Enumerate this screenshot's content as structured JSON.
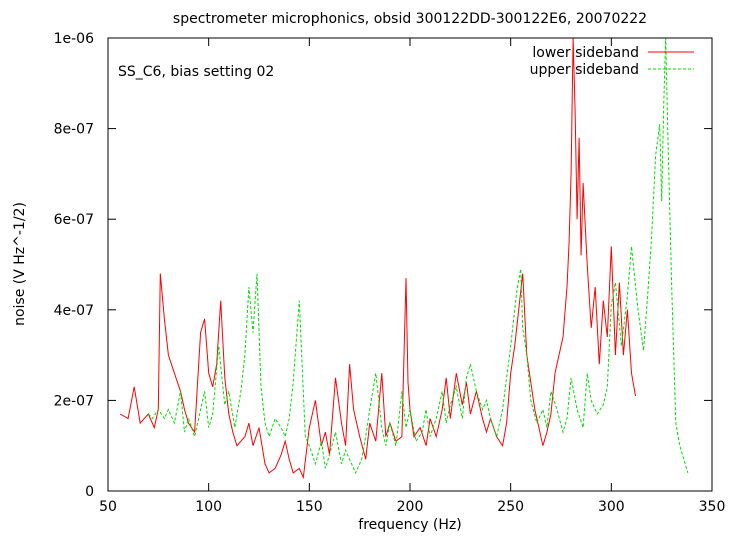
{
  "chart_data": {
    "type": "line",
    "title": "spectrometer microphonics, obsid 300122DD-300122E6, 20070222",
    "annotation": "SS_C6, bias setting 02",
    "xlabel": "frequency (Hz)",
    "ylabel": "noise (V Hz^-1/2)",
    "xlim": [
      50,
      350
    ],
    "ylim": [
      0,
      1e-06
    ],
    "x_ticks": [
      50,
      100,
      150,
      200,
      250,
      300,
      350
    ],
    "x_tick_labels": [
      "50",
      "100",
      "150",
      "200",
      "250",
      "300",
      "350"
    ],
    "y_ticks": [
      0,
      2e-07,
      4e-07,
      6e-07,
      8e-07,
      1e-06
    ],
    "y_tick_labels": [
      "0",
      "2e-07",
      "4e-07",
      "6e-07",
      "8e-07",
      "1e-06"
    ],
    "grid": false,
    "legend_position": "top-right",
    "series": [
      {
        "name": "lower sideband",
        "color": "#ff0000",
        "style": "solid",
        "x": [
          56,
          60,
          63,
          66,
          70,
          73,
          75,
          76,
          78,
          80,
          83,
          86,
          88,
          90,
          93,
          96,
          98,
          100,
          102,
          104,
          106,
          108,
          110,
          112,
          114,
          116,
          118,
          120,
          122,
          125,
          128,
          130,
          133,
          136,
          138,
          140,
          142,
          145,
          147,
          150,
          153,
          156,
          158,
          160,
          163,
          166,
          168,
          170,
          172,
          175,
          178,
          180,
          183,
          186,
          188,
          190,
          193,
          196,
          198,
          199,
          200,
          202,
          205,
          208,
          210,
          213,
          216,
          218,
          220,
          223,
          226,
          228,
          230,
          233,
          236,
          238,
          240,
          243,
          246,
          248,
          250,
          252,
          254,
          256,
          258,
          260,
          262,
          264,
          266,
          268,
          270,
          272,
          274,
          276,
          278,
          279,
          280,
          281,
          282,
          283,
          284,
          285,
          286,
          288,
          290,
          292,
          294,
          296,
          298,
          300,
          302,
          304,
          306,
          308,
          310,
          312
        ],
        "y": [
          1.7e-07,
          1.6e-07,
          2.3e-07,
          1.5e-07,
          1.7e-07,
          1.4e-07,
          1.8e-07,
          4.8e-07,
          3.8e-07,
          3e-07,
          2.6e-07,
          2.2e-07,
          1.8e-07,
          1.5e-07,
          1.3e-07,
          3.5e-07,
          3.8e-07,
          2.6e-07,
          2.3e-07,
          2.8e-07,
          4.2e-07,
          2.5e-07,
          1.7e-07,
          1.3e-07,
          1e-07,
          1.1e-07,
          1.2e-07,
          1.5e-07,
          1e-07,
          1.4e-07,
          6e-08,
          4e-08,
          5e-08,
          8e-08,
          1.1e-07,
          7e-08,
          4e-08,
          5e-08,
          3e-08,
          1.4e-07,
          2e-07,
          1e-07,
          1.3e-07,
          8e-08,
          2.5e-07,
          1.5e-07,
          1e-07,
          2.8e-07,
          1.8e-07,
          1.2e-07,
          7e-08,
          1.5e-07,
          1.1e-07,
          2.6e-07,
          1.2e-07,
          1.5e-07,
          1.1e-07,
          1.2e-07,
          4.7e-07,
          2.4e-07,
          1.8e-07,
          1.2e-07,
          1.4e-07,
          1e-07,
          1.6e-07,
          1.2e-07,
          1.8e-07,
          2.5e-07,
          1.6e-07,
          2.6e-07,
          1.9e-07,
          2.4e-07,
          1.7e-07,
          2.2e-07,
          1.6e-07,
          1.3e-07,
          1.6e-07,
          1.2e-07,
          1e-07,
          1.5e-07,
          2.6e-07,
          3.2e-07,
          4e-07,
          4.8e-07,
          3e-07,
          2.4e-07,
          1.8e-07,
          1.4e-07,
          1e-07,
          1.3e-07,
          1.7e-07,
          2.6e-07,
          3e-07,
          3.4e-07,
          4.5e-07,
          5.5e-07,
          7e-07,
          1e-06,
          8.4e-07,
          6e-07,
          7.8e-07,
          5.2e-07,
          6.8e-07,
          5e-07,
          3.6e-07,
          4.5e-07,
          2.8e-07,
          4.2e-07,
          3.4e-07,
          5.4e-07,
          3e-07,
          4.6e-07,
          3e-07,
          4e-07,
          2.6e-07,
          2.1e-07
        ]
      },
      {
        "name": "upper sideband",
        "color": "#00dd00",
        "style": "dashed",
        "x": [
          70,
          72,
          75,
          78,
          80,
          83,
          86,
          88,
          90,
          93,
          96,
          98,
          100,
          102,
          105,
          108,
          110,
          113,
          116,
          118,
          120,
          122,
          124,
          126,
          128,
          130,
          133,
          136,
          138,
          140,
          142,
          145,
          148,
          150,
          153,
          156,
          158,
          160,
          163,
          166,
          168,
          170,
          173,
          176,
          178,
          180,
          183,
          186,
          188,
          190,
          193,
          196,
          198,
          200,
          203,
          206,
          208,
          210,
          213,
          216,
          218,
          220,
          223,
          226,
          228,
          230,
          233,
          236,
          238,
          240,
          243,
          246,
          248,
          250,
          253,
          255,
          256,
          258,
          260,
          263,
          266,
          268,
          270,
          273,
          276,
          278,
          280,
          283,
          286,
          288,
          290,
          293,
          296,
          298,
          300,
          302,
          305,
          308,
          310,
          313,
          316,
          318,
          320,
          322,
          324,
          325,
          326,
          327,
          328,
          330,
          332,
          334,
          336,
          338
        ],
        "y": [
          1.7e-07,
          1.6e-07,
          1.8e-07,
          1.6e-07,
          1.8e-07,
          1.5e-07,
          2.2e-07,
          1.3e-07,
          1.6e-07,
          1.2e-07,
          1.8e-07,
          2.2e-07,
          1.4e-07,
          1.7e-07,
          3.2e-07,
          1.9e-07,
          2.2e-07,
          1.4e-07,
          2.2e-07,
          3e-07,
          4.5e-07,
          3.5e-07,
          4.8e-07,
          2.3e-07,
          1.5e-07,
          1.2e-07,
          1.6e-07,
          1.4e-07,
          1.2e-07,
          1.6e-07,
          2.4e-07,
          4.2e-07,
          1.2e-07,
          1e-07,
          6e-08,
          1.1e-07,
          5e-08,
          8e-08,
          1.3e-07,
          6e-08,
          9e-08,
          7e-08,
          4e-08,
          7e-08,
          1.2e-07,
          1.8e-07,
          2.6e-07,
          1.4e-07,
          1e-07,
          1.5e-07,
          1e-07,
          2.2e-07,
          1.4e-07,
          1.8e-07,
          1.1e-07,
          1.3e-07,
          1.8e-07,
          1.2e-07,
          1.6e-07,
          2.2e-07,
          1.5e-07,
          1.9e-07,
          2.3e-07,
          1.6e-07,
          2.5e-07,
          2.8e-07,
          2.2e-07,
          1.8e-07,
          2e-07,
          1.6e-07,
          1.2e-07,
          1.8e-07,
          2.5e-07,
          3.2e-07,
          4.4e-07,
          4.9e-07,
          3.6e-07,
          3e-07,
          2e-07,
          1.5e-07,
          1.8e-07,
          1.4e-07,
          2.2e-07,
          1.8e-07,
          1.3e-07,
          1.6e-07,
          2.5e-07,
          1.8e-07,
          1.4e-07,
          2.6e-07,
          2e-07,
          1.7e-07,
          1.9e-07,
          2.3e-07,
          4.1e-07,
          4.6e-07,
          3.2e-07,
          4.3e-07,
          5.4e-07,
          4.1e-07,
          3.1e-07,
          4.3e-07,
          5.6e-07,
          7.4e-07,
          8.1e-07,
          6.4e-07,
          8.5e-07,
          1e-06,
          8e-07,
          4.5e-07,
          1.5e-07,
          1e-07,
          7e-08,
          4e-08
        ]
      }
    ]
  }
}
